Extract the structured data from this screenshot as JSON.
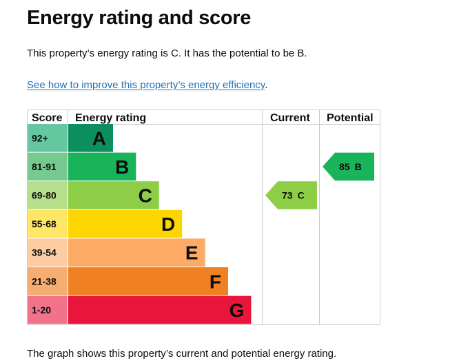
{
  "page": {
    "title": "Energy rating and score",
    "summary": "This property’s energy rating is C. It has the potential to be B.",
    "improve_link": "See how to improve this property’s energy efficiency",
    "improve_link_suffix": ".",
    "footer": "The graph shows this property’s current and potential energy rating."
  },
  "table": {
    "headers": {
      "score": "Score",
      "energy_rating": "Energy rating",
      "current": "Current",
      "potential": "Potential"
    },
    "bands": [
      {
        "score": "92+",
        "letter": "A",
        "color": "#0c8f5f",
        "score_bg": "#64c7a0"
      },
      {
        "score": "81-91",
        "letter": "B",
        "color": "#19b459",
        "score_bg": "#76ca8f"
      },
      {
        "score": "69-80",
        "letter": "C",
        "color": "#8dce46",
        "score_bg": "#b7df8b"
      },
      {
        "score": "55-68",
        "letter": "D",
        "color": "#ffd500",
        "score_bg": "#ffe666"
      },
      {
        "score": "39-54",
        "letter": "E",
        "color": "#fcaa65",
        "score_bg": "#fdcca3"
      },
      {
        "score": "21-38",
        "letter": "F",
        "color": "#ef8023",
        "score_bg": "#f5ad71"
      },
      {
        "score": "1-20",
        "letter": "G",
        "color": "#e9153b",
        "score_bg": "#f27389"
      }
    ],
    "current": {
      "value": "73",
      "letter": "C",
      "band": "C",
      "color": "#8dce46"
    },
    "potential": {
      "value": "85",
      "letter": "B",
      "band": "B",
      "color": "#19b459"
    }
  },
  "colors": {
    "link": "#1d70b8",
    "text": "#0b0c0c",
    "border": "#cccccc"
  }
}
